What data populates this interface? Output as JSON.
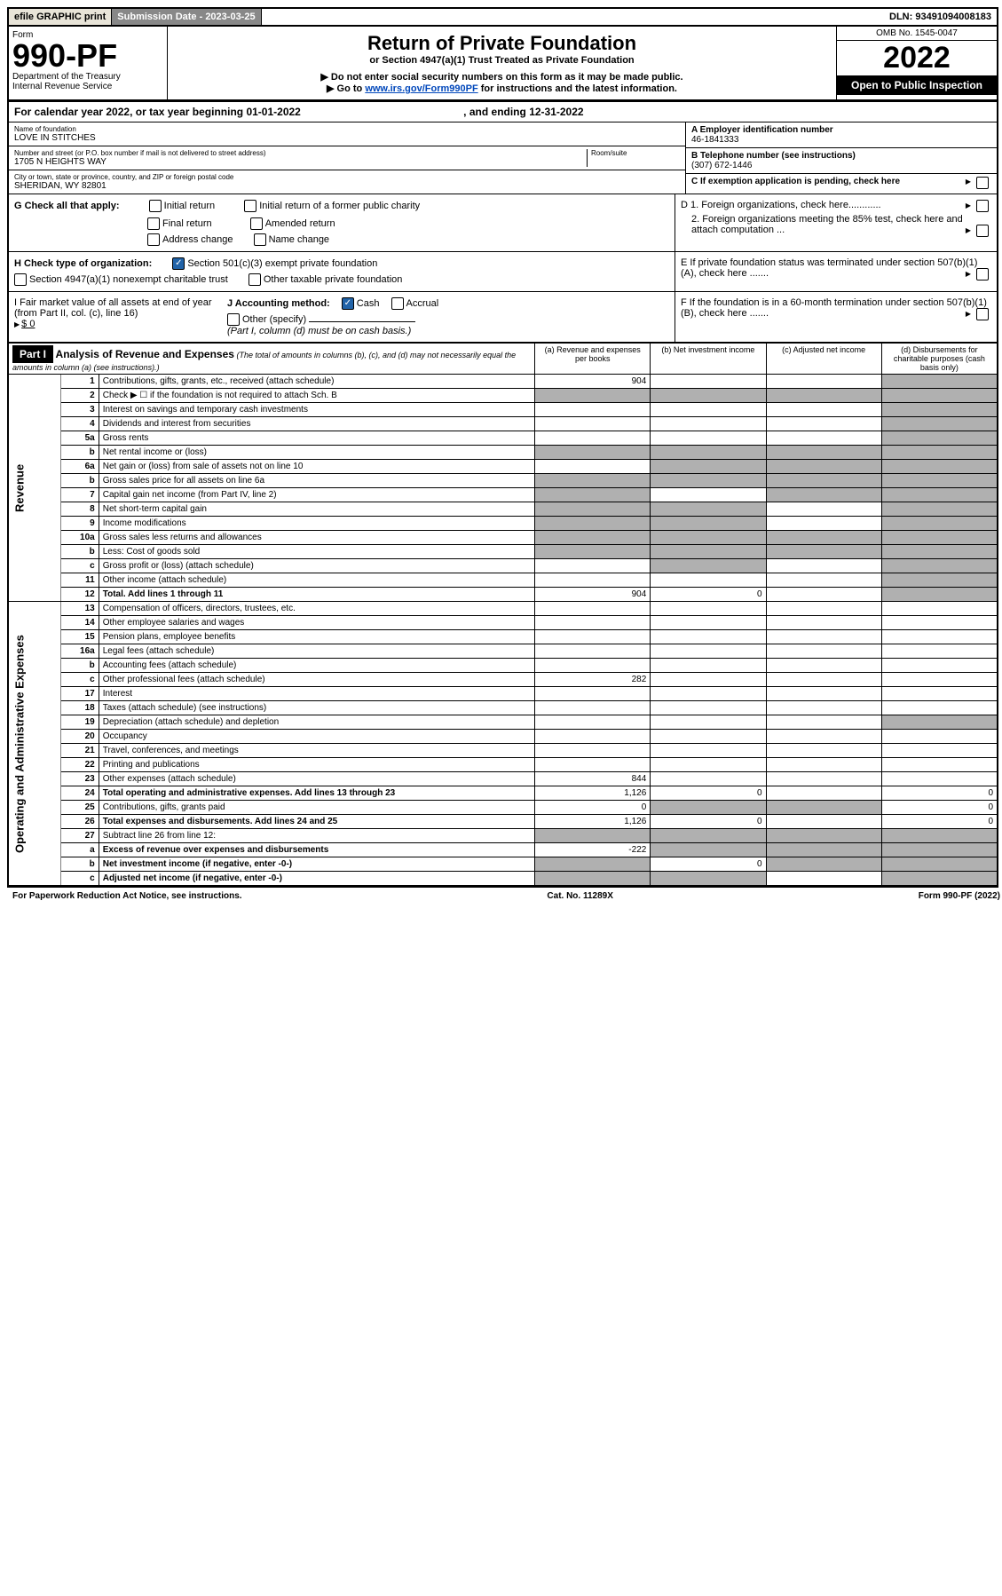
{
  "topbar": {
    "efile": "efile GRAPHIC print",
    "submission_label": "Submission Date - 2023-03-25",
    "dln": "DLN: 93491094008183"
  },
  "header": {
    "form_word": "Form",
    "form_number": "990-PF",
    "dept": "Department of the Treasury",
    "irs": "Internal Revenue Service",
    "title": "Return of Private Foundation",
    "subtitle": "or Section 4947(a)(1) Trust Treated as Private Foundation",
    "note1": "▶ Do not enter social security numbers on this form as it may be made public.",
    "note2_pre": "▶ Go to ",
    "note2_link": "www.irs.gov/Form990PF",
    "note2_post": " for instructions and the latest information.",
    "omb": "OMB No. 1545-0047",
    "year": "2022",
    "open": "Open to Public Inspection"
  },
  "calendar": {
    "text_pre": "For calendar year 2022, or tax year beginning ",
    "begin": "01-01-2022",
    "text_mid": " , and ending ",
    "end": "12-31-2022"
  },
  "foundation": {
    "name_label": "Name of foundation",
    "name": "LOVE IN STITCHES",
    "addr_label": "Number and street (or P.O. box number if mail is not delivered to street address)",
    "addr": "1705 N HEIGHTS WAY",
    "room_label": "Room/suite",
    "city_label": "City or town, state or province, country, and ZIP or foreign postal code",
    "city": "SHERIDAN, WY  82801",
    "ein_label": "A Employer identification number",
    "ein": "46-1841333",
    "phone_label": "B Telephone number (see instructions)",
    "phone": "(307) 672-1446",
    "c_label": "C If exemption application is pending, check here"
  },
  "checks": {
    "g_label": "G Check all that apply:",
    "g_initial": "Initial return",
    "g_initial_former": "Initial return of a former public charity",
    "g_final": "Final return",
    "g_amended": "Amended return",
    "g_address": "Address change",
    "g_name": "Name change",
    "h_label": "H Check type of organization:",
    "h_501c3": "Section 501(c)(3) exempt private foundation",
    "h_4947": "Section 4947(a)(1) nonexempt charitable trust",
    "h_other": "Other taxable private foundation",
    "i_label": "I Fair market value of all assets at end of year (from Part II, col. (c), line 16)",
    "i_amount": "$ 0",
    "j_label": "J Accounting method:",
    "j_cash": "Cash",
    "j_accrual": "Accrual",
    "j_other": "Other (specify)",
    "j_note": "(Part I, column (d) must be on cash basis.)",
    "d1": "D 1. Foreign organizations, check here............",
    "d2": "2. Foreign organizations meeting the 85% test, check here and attach computation ...",
    "e": "E  If private foundation status was terminated under section 507(b)(1)(A), check here .......",
    "f": "F  If the foundation is in a 60-month termination under section 507(b)(1)(B), check here .......",
    "arrow": "▶"
  },
  "part1": {
    "label": "Part I",
    "title": "Analysis of Revenue and Expenses",
    "note": "(The total of amounts in columns (b), (c), and (d) may not necessarily equal the amounts in column (a) (see instructions).)",
    "col_a": "(a)   Revenue and expenses per books",
    "col_b": "(b)   Net investment income",
    "col_c": "(c)   Adjusted net income",
    "col_d": "(d)   Disbursements for charitable purposes (cash basis only)"
  },
  "side_labels": {
    "revenue": "Revenue",
    "expenses": "Operating and Administrative Expenses"
  },
  "rows": [
    {
      "num": "1",
      "desc": "Contributions, gifts, grants, etc., received (attach schedule)",
      "a": "904",
      "b": "",
      "c": "",
      "d": "shaded"
    },
    {
      "num": "2",
      "desc": "Check ▶ ☐ if the foundation is not required to attach Sch. B",
      "a": "shaded",
      "b": "shaded",
      "c": "shaded",
      "d": "shaded"
    },
    {
      "num": "3",
      "desc": "Interest on savings and temporary cash investments",
      "a": "",
      "b": "",
      "c": "",
      "d": "shaded"
    },
    {
      "num": "4",
      "desc": "Dividends and interest from securities",
      "a": "",
      "b": "",
      "c": "",
      "d": "shaded"
    },
    {
      "num": "5a",
      "desc": "Gross rents",
      "a": "",
      "b": "",
      "c": "",
      "d": "shaded"
    },
    {
      "num": "b",
      "desc": "Net rental income or (loss)",
      "a": "shaded",
      "b": "shaded",
      "c": "shaded",
      "d": "shaded"
    },
    {
      "num": "6a",
      "desc": "Net gain or (loss) from sale of assets not on line 10",
      "a": "",
      "b": "shaded",
      "c": "shaded",
      "d": "shaded"
    },
    {
      "num": "b",
      "desc": "Gross sales price for all assets on line 6a",
      "a": "shaded",
      "b": "shaded",
      "c": "shaded",
      "d": "shaded"
    },
    {
      "num": "7",
      "desc": "Capital gain net income (from Part IV, line 2)",
      "a": "shaded",
      "b": "",
      "c": "shaded",
      "d": "shaded"
    },
    {
      "num": "8",
      "desc": "Net short-term capital gain",
      "a": "shaded",
      "b": "shaded",
      "c": "",
      "d": "shaded"
    },
    {
      "num": "9",
      "desc": "Income modifications",
      "a": "shaded",
      "b": "shaded",
      "c": "",
      "d": "shaded"
    },
    {
      "num": "10a",
      "desc": "Gross sales less returns and allowances",
      "a": "shaded",
      "b": "shaded",
      "c": "shaded",
      "d": "shaded"
    },
    {
      "num": "b",
      "desc": "Less: Cost of goods sold",
      "a": "shaded",
      "b": "shaded",
      "c": "shaded",
      "d": "shaded"
    },
    {
      "num": "c",
      "desc": "Gross profit or (loss) (attach schedule)",
      "a": "",
      "b": "shaded",
      "c": "",
      "d": "shaded"
    },
    {
      "num": "11",
      "desc": "Other income (attach schedule)",
      "a": "",
      "b": "",
      "c": "",
      "d": "shaded"
    },
    {
      "num": "12",
      "desc": "Total. Add lines 1 through 11",
      "a": "904",
      "b": "0",
      "c": "",
      "d": "shaded",
      "bold": true
    },
    {
      "num": "13",
      "desc": "Compensation of officers, directors, trustees, etc.",
      "a": "",
      "b": "",
      "c": "",
      "d": ""
    },
    {
      "num": "14",
      "desc": "Other employee salaries and wages",
      "a": "",
      "b": "",
      "c": "",
      "d": ""
    },
    {
      "num": "15",
      "desc": "Pension plans, employee benefits",
      "a": "",
      "b": "",
      "c": "",
      "d": ""
    },
    {
      "num": "16a",
      "desc": "Legal fees (attach schedule)",
      "a": "",
      "b": "",
      "c": "",
      "d": ""
    },
    {
      "num": "b",
      "desc": "Accounting fees (attach schedule)",
      "a": "",
      "b": "",
      "c": "",
      "d": ""
    },
    {
      "num": "c",
      "desc": "Other professional fees (attach schedule)",
      "a": "282",
      "b": "",
      "c": "",
      "d": ""
    },
    {
      "num": "17",
      "desc": "Interest",
      "a": "",
      "b": "",
      "c": "",
      "d": ""
    },
    {
      "num": "18",
      "desc": "Taxes (attach schedule) (see instructions)",
      "a": "",
      "b": "",
      "c": "",
      "d": ""
    },
    {
      "num": "19",
      "desc": "Depreciation (attach schedule) and depletion",
      "a": "",
      "b": "",
      "c": "",
      "d": "shaded"
    },
    {
      "num": "20",
      "desc": "Occupancy",
      "a": "",
      "b": "",
      "c": "",
      "d": ""
    },
    {
      "num": "21",
      "desc": "Travel, conferences, and meetings",
      "a": "",
      "b": "",
      "c": "",
      "d": ""
    },
    {
      "num": "22",
      "desc": "Printing and publications",
      "a": "",
      "b": "",
      "c": "",
      "d": ""
    },
    {
      "num": "23",
      "desc": "Other expenses (attach schedule)",
      "a": "844",
      "b": "",
      "c": "",
      "d": ""
    },
    {
      "num": "24",
      "desc": "Total operating and administrative expenses. Add lines 13 through 23",
      "a": "1,126",
      "b": "0",
      "c": "",
      "d": "0",
      "bold": true
    },
    {
      "num": "25",
      "desc": "Contributions, gifts, grants paid",
      "a": "0",
      "b": "shaded",
      "c": "shaded",
      "d": "0"
    },
    {
      "num": "26",
      "desc": "Total expenses and disbursements. Add lines 24 and 25",
      "a": "1,126",
      "b": "0",
      "c": "",
      "d": "0",
      "bold": true
    },
    {
      "num": "27",
      "desc": "Subtract line 26 from line 12:",
      "a": "shaded",
      "b": "shaded",
      "c": "shaded",
      "d": "shaded"
    },
    {
      "num": "a",
      "desc": "Excess of revenue over expenses and disbursements",
      "a": "-222",
      "b": "shaded",
      "c": "shaded",
      "d": "shaded",
      "bold": true
    },
    {
      "num": "b",
      "desc": "Net investment income (if negative, enter -0-)",
      "a": "shaded",
      "b": "0",
      "c": "shaded",
      "d": "shaded",
      "bold": true
    },
    {
      "num": "c",
      "desc": "Adjusted net income (if negative, enter -0-)",
      "a": "shaded",
      "b": "shaded",
      "c": "",
      "d": "shaded",
      "bold": true
    }
  ],
  "footer": {
    "left": "For Paperwork Reduction Act Notice, see instructions.",
    "center": "Cat. No. 11289X",
    "right": "Form 990-PF (2022)"
  }
}
